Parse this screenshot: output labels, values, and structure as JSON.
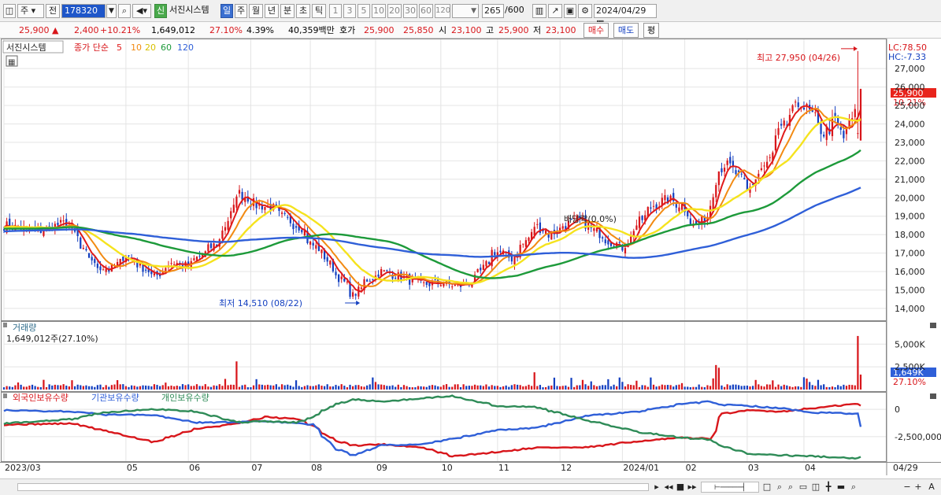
{
  "toolbar": {
    "market": "주",
    "prev_label": "전",
    "code": "178320",
    "badge": "신",
    "name": "서진시스템",
    "periods": [
      "일",
      "주",
      "월",
      "년",
      "분",
      "초",
      "틱"
    ],
    "active_period": "일",
    "intervals": [
      "1",
      "3",
      "5",
      "10",
      "20",
      "30",
      "60",
      "120"
    ],
    "count": "265",
    "count_total": "/600",
    "date": "2024/04/29"
  },
  "infobar": {
    "price": "25,900",
    "change": "2,400",
    "change_pct": "+10.21%",
    "volume": "1,649,012",
    "vol_ratio": "27.10%",
    "rate": "4.39%",
    "amount": "40,359백만",
    "quote_label": "호가",
    "ask": "25,900",
    "bid": "25,850",
    "open_label": "시",
    "open": "23,100",
    "high_label": "고",
    "high": "25,900",
    "low_label": "저",
    "low": "23,100",
    "buy_btn": "매수",
    "sell_btn": "매도",
    "flat_btn": "평"
  },
  "colors": {
    "up": "#d8161b",
    "down": "#1440c0",
    "ma5": "#e01a1a",
    "ma10": "#f28a12",
    "ma20": "#f5e31e",
    "ma60": "#1d9a3a",
    "ma120": "#2f5fd8",
    "foreign": "#d8161b",
    "institution": "#2f5fd8",
    "individual": "#2e8b57"
  },
  "chart_data": [
    {
      "type": "candlestick",
      "legend": {
        "name": "서진시스템",
        "label": "종가 단순",
        "periods": [
          "5",
          "10",
          "20",
          "60",
          "120"
        ]
      },
      "yticks": [
        14000,
        15000,
        16000,
        17000,
        18000,
        19000,
        20000,
        21000,
        22000,
        23000,
        24000,
        25000,
        26000,
        27000
      ],
      "ytick_labels": [
        "14,000",
        "15,000",
        "16,000",
        "17,000",
        "18,000",
        "19,000",
        "20,000",
        "21,000",
        "22,000",
        "23,000",
        "24,000",
        "25,000",
        "26,000",
        "27,000"
      ],
      "ylim": [
        13400,
        28200
      ],
      "high_annotation": "최고 27,950 (04/26)",
      "low_annotation": "최저 14,510 (08/22)",
      "dividend_annotation": "배당락(0.0%)",
      "lc_label": "LC:78.50",
      "hc_label": "HC:-7.33",
      "last_price": "25,900",
      "last_pct": "10.21%",
      "price_anchors": [
        [
          "2023-03-02",
          18500
        ],
        [
          "2023-03-20",
          18200
        ],
        [
          "2023-04-03",
          18700
        ],
        [
          "2023-04-10",
          17200
        ],
        [
          "2023-04-17",
          16300
        ],
        [
          "2023-04-24",
          16100
        ],
        [
          "2023-05-02",
          16900
        ],
        [
          "2023-05-10",
          16200
        ],
        [
          "2023-05-16",
          15700
        ],
        [
          "2023-05-24",
          16500
        ],
        [
          "2023-06-01",
          16300
        ],
        [
          "2023-06-09",
          17000
        ],
        [
          "2023-06-15",
          17500
        ],
        [
          "2023-06-20",
          18500
        ],
        [
          "2023-06-26",
          20300
        ],
        [
          "2023-06-30",
          20000
        ],
        [
          "2023-07-05",
          19600
        ],
        [
          "2023-07-12",
          19500
        ],
        [
          "2023-07-20",
          18800
        ],
        [
          "2023-07-27",
          18400
        ],
        [
          "2023-08-01",
          17500
        ],
        [
          "2023-08-07",
          17000
        ],
        [
          "2023-08-11",
          16200
        ],
        [
          "2023-08-17",
          15400
        ],
        [
          "2023-08-22",
          14700
        ],
        [
          "2023-08-28",
          15500
        ],
        [
          "2023-09-05",
          16000
        ],
        [
          "2023-09-12",
          15800
        ],
        [
          "2023-09-19",
          15500
        ],
        [
          "2023-09-26",
          15300
        ],
        [
          "2023-10-05",
          15400
        ],
        [
          "2023-10-12",
          15200
        ],
        [
          "2023-10-18",
          15400
        ],
        [
          "2023-10-24",
          16000
        ],
        [
          "2023-10-30",
          17100
        ],
        [
          "2023-11-03",
          17000
        ],
        [
          "2023-11-08",
          16700
        ],
        [
          "2023-11-14",
          17500
        ],
        [
          "2023-11-20",
          18500
        ],
        [
          "2023-11-27",
          18000
        ],
        [
          "2023-12-04",
          18500
        ],
        [
          "2023-12-11",
          18800
        ],
        [
          "2023-12-18",
          18300
        ],
        [
          "2023-12-27",
          17600
        ],
        [
          "2024-01-02",
          17300
        ],
        [
          "2024-01-05",
          17800
        ],
        [
          "2024-01-10",
          18700
        ],
        [
          "2024-01-17",
          19600
        ],
        [
          "2024-01-24",
          19900
        ],
        [
          "2024-01-31",
          19600
        ],
        [
          "2024-02-06",
          18500
        ],
        [
          "2024-02-13",
          19000
        ],
        [
          "2024-02-16",
          21000
        ],
        [
          "2024-02-21",
          21800
        ],
        [
          "2024-02-26",
          21500
        ],
        [
          "2024-03-04",
          20300
        ],
        [
          "2024-03-08",
          21300
        ],
        [
          "2024-03-13",
          21800
        ],
        [
          "2024-03-19",
          23500
        ],
        [
          "2024-03-25",
          24500
        ],
        [
          "2024-03-29",
          25200
        ],
        [
          "2024-04-02",
          24800
        ],
        [
          "2024-04-05",
          24300
        ],
        [
          "2024-04-10",
          23500
        ],
        [
          "2024-04-16",
          24200
        ],
        [
          "2024-04-19",
          23200
        ],
        [
          "2024-04-23",
          24000
        ],
        [
          "2024-04-26",
          24800
        ],
        [
          "2024-04-29",
          25900
        ]
      ]
    },
    {
      "type": "bar",
      "title": "거래량",
      "value_label": "1,649,012주(27.10%)",
      "yticks": [
        2500000,
        5000000
      ],
      "ytick_labels": [
        "2,500K",
        "5,000K"
      ],
      "ylim": [
        0,
        6500000
      ],
      "last_value_label": "1,649K",
      "last_pct": "27.10%",
      "spikes": [
        [
          "2023-06-26",
          3100000
        ],
        [
          "2023-11-20",
          1900000
        ],
        [
          "2024-02-16",
          2700000
        ],
        [
          "2024-02-19",
          2400000
        ],
        [
          "2024-04-26",
          5900000
        ],
        [
          "2024-04-29",
          1649012
        ]
      ]
    },
    {
      "type": "line",
      "series_names": [
        "외국인보유수량",
        "기관보유수량",
        "개인보유수량"
      ],
      "yticks": [
        0,
        -2500000
      ],
      "ytick_labels": [
        "0",
        "-2,500,000"
      ],
      "ylim": [
        -4600000,
        1300000
      ],
      "series": [
        {
          "name": "외국인보유수량",
          "points": [
            [
              "2023-03-02",
              -1400000
            ],
            [
              "2023-04-05",
              -1300000
            ],
            [
              "2023-04-20",
              -1900000
            ],
            [
              "2023-05-15",
              -3000000
            ],
            [
              "2023-06-05",
              -1800000
            ],
            [
              "2023-06-26",
              -1300000
            ],
            [
              "2023-07-10",
              -700000
            ],
            [
              "2023-07-25",
              -900000
            ],
            [
              "2023-08-02",
              -1500000
            ],
            [
              "2023-08-12",
              -2800000
            ],
            [
              "2023-08-22",
              -3300000
            ],
            [
              "2023-09-05",
              -3200000
            ],
            [
              "2023-09-25",
              -3500000
            ],
            [
              "2023-10-10",
              -4300000
            ],
            [
              "2023-11-01",
              -3900000
            ],
            [
              "2023-11-20",
              -3500000
            ],
            [
              "2023-12-15",
              -3500000
            ],
            [
              "2024-01-10",
              -2900000
            ],
            [
              "2024-02-01",
              -2600000
            ],
            [
              "2024-02-14",
              -2700000
            ],
            [
              "2024-02-20",
              -400000
            ],
            [
              "2024-03-05",
              -100000
            ],
            [
              "2024-03-20",
              -200000
            ],
            [
              "2024-04-05",
              100000
            ],
            [
              "2024-04-26",
              500000
            ],
            [
              "2024-04-29",
              300000
            ]
          ]
        },
        {
          "name": "기관보유수량",
          "points": [
            [
              "2023-03-02",
              -100000
            ],
            [
              "2023-04-05",
              -200000
            ],
            [
              "2023-04-20",
              -500000
            ],
            [
              "2023-05-15",
              -500000
            ],
            [
              "2023-06-05",
              -1200000
            ],
            [
              "2023-06-26",
              -1200000
            ],
            [
              "2023-07-10",
              -1100000
            ],
            [
              "2023-07-25",
              -1300000
            ],
            [
              "2023-08-02",
              -1400000
            ],
            [
              "2023-08-12",
              -3500000
            ],
            [
              "2023-08-22",
              -4200000
            ],
            [
              "2023-09-05",
              -3300000
            ],
            [
              "2023-09-25",
              -3200000
            ],
            [
              "2023-10-10",
              -2700000
            ],
            [
              "2023-11-01",
              -1900000
            ],
            [
              "2023-11-20",
              -1700000
            ],
            [
              "2023-12-15",
              -600000
            ],
            [
              "2024-01-10",
              -200000
            ],
            [
              "2024-02-01",
              500000
            ],
            [
              "2024-02-14",
              700000
            ],
            [
              "2024-02-20",
              400000
            ],
            [
              "2024-03-05",
              300000
            ],
            [
              "2024-03-20",
              100000
            ],
            [
              "2024-04-05",
              -300000
            ],
            [
              "2024-04-26",
              -400000
            ],
            [
              "2024-04-29",
              -1600000
            ]
          ]
        },
        {
          "name": "개인보유수량",
          "points": [
            [
              "2023-03-02",
              -1300000
            ],
            [
              "2023-04-05",
              -900000
            ],
            [
              "2023-04-20",
              -300000
            ],
            [
              "2023-05-15",
              0
            ],
            [
              "2023-06-05",
              -200000
            ],
            [
              "2023-06-26",
              -1200000
            ],
            [
              "2023-07-10",
              -1100000
            ],
            [
              "2023-07-25",
              -1200000
            ],
            [
              "2023-08-02",
              -700000
            ],
            [
              "2023-08-12",
              400000
            ],
            [
              "2023-08-22",
              900000
            ],
            [
              "2023-09-05",
              700000
            ],
            [
              "2023-09-25",
              1000000
            ],
            [
              "2023-10-10",
              1200000
            ],
            [
              "2023-11-01",
              300000
            ],
            [
              "2023-11-20",
              200000
            ],
            [
              "2023-12-15",
              -1000000
            ],
            [
              "2024-01-10",
              -2100000
            ],
            [
              "2024-02-01",
              -2600000
            ],
            [
              "2024-02-14",
              -2800000
            ],
            [
              "2024-02-20",
              -3400000
            ],
            [
              "2024-03-05",
              -4100000
            ],
            [
              "2024-03-20",
              -4200000
            ],
            [
              "2024-04-05",
              -4300000
            ],
            [
              "2024-04-26",
              -4500000
            ],
            [
              "2024-04-29",
              -4300000
            ]
          ]
        }
      ]
    }
  ],
  "xaxis": {
    "labels": [
      [
        "2023-03-02",
        "2023/03"
      ],
      [
        "2023-05-02",
        "05"
      ],
      [
        "2023-06-01",
        "06"
      ],
      [
        "2023-07-03",
        "07"
      ],
      [
        "2023-08-01",
        "08"
      ],
      [
        "2023-09-01",
        "09"
      ],
      [
        "2023-10-04",
        "10"
      ],
      [
        "2023-11-01",
        "11"
      ],
      [
        "2023-12-01",
        "12"
      ],
      [
        "2024-01-02",
        "2024/01"
      ],
      [
        "2024-02-01",
        "02"
      ],
      [
        "2024-03-04",
        "03"
      ],
      [
        "2024-04-01",
        "04"
      ]
    ],
    "end_label": "04/29"
  }
}
